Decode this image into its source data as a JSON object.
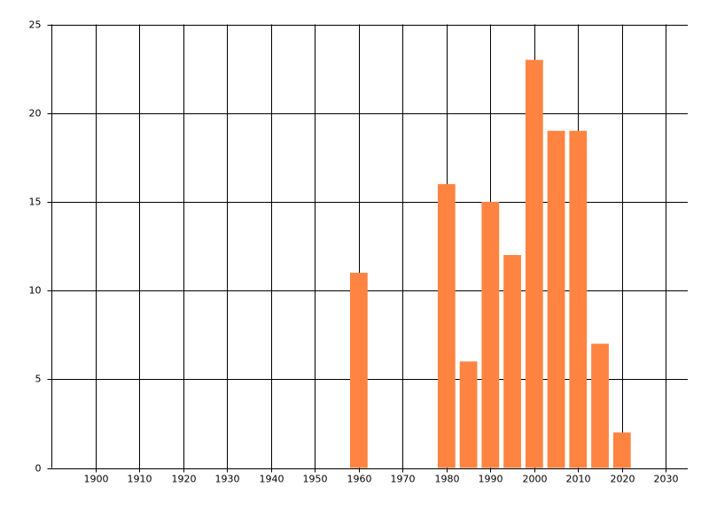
{
  "chart_data": {
    "type": "bar",
    "x": [
      1960,
      1980,
      1985,
      1990,
      1995,
      2000,
      2005,
      2010,
      2015,
      2020
    ],
    "values": [
      11,
      16,
      6,
      15,
      12,
      23,
      19,
      19,
      7,
      2
    ],
    "color": "#ff8442",
    "xlim": [
      1890,
      2035
    ],
    "xticks": [
      1900,
      1910,
      1920,
      1930,
      1940,
      1950,
      1960,
      1970,
      1980,
      1990,
      2000,
      2010,
      2020,
      2030
    ],
    "ylim": [
      0,
      25
    ],
    "yticks": [
      0,
      5,
      10,
      15,
      20,
      25
    ],
    "grid": true
  }
}
